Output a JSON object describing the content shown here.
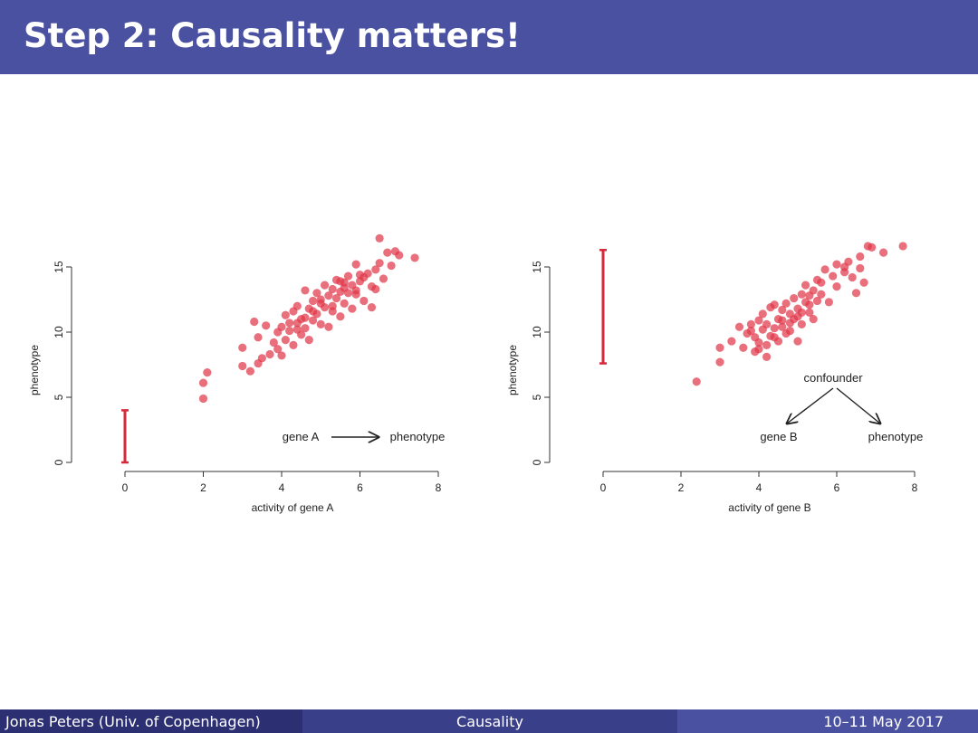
{
  "slide": {
    "title": "Step 2: Causality matters!"
  },
  "footer": {
    "left": "Jonas Peters  (Univ. of Copenhagen)",
    "center": "Causality",
    "right": "10–11 May 2017"
  },
  "colors": {
    "accent": "#4a51a0",
    "points": "#e0384a",
    "bar": "#d42a3c"
  },
  "chart_data": [
    {
      "type": "scatter",
      "xlabel": "activity of gene A",
      "ylabel": "phenotype",
      "xlim": [
        -1.4,
        8.8
      ],
      "ylim": [
        -0.6,
        19.5
      ],
      "x_ticks": [
        0,
        2,
        4,
        6,
        8
      ],
      "y_ticks": [
        0,
        5,
        10,
        15
      ],
      "interval": {
        "x": 0,
        "y_low": 0,
        "y_high": 4
      },
      "annotation": {
        "from": "gene A",
        "to": "phenotype"
      },
      "points": [
        [
          2.0,
          4.9
        ],
        [
          2.0,
          6.1
        ],
        [
          2.1,
          6.9
        ],
        [
          3.0,
          7.4
        ],
        [
          3.0,
          8.8
        ],
        [
          3.2,
          7.0
        ],
        [
          3.3,
          10.8
        ],
        [
          3.4,
          7.6
        ],
        [
          3.4,
          9.6
        ],
        [
          3.5,
          8.0
        ],
        [
          3.6,
          10.5
        ],
        [
          3.7,
          8.3
        ],
        [
          3.8,
          9.2
        ],
        [
          3.9,
          8.7
        ],
        [
          3.9,
          10.0
        ],
        [
          4.0,
          8.2
        ],
        [
          4.0,
          10.4
        ],
        [
          4.1,
          9.4
        ],
        [
          4.1,
          11.3
        ],
        [
          4.2,
          10.1
        ],
        [
          4.3,
          11.6
        ],
        [
          4.3,
          9.0
        ],
        [
          4.4,
          10.7
        ],
        [
          4.4,
          12.0
        ],
        [
          4.5,
          9.8
        ],
        [
          4.5,
          11.0
        ],
        [
          4.6,
          13.2
        ],
        [
          4.6,
          10.3
        ],
        [
          4.7,
          11.8
        ],
        [
          4.7,
          9.4
        ],
        [
          4.8,
          12.4
        ],
        [
          4.8,
          10.9
        ],
        [
          4.9,
          13.0
        ],
        [
          4.9,
          11.4
        ],
        [
          5.0,
          12.2
        ],
        [
          5.0,
          10.6
        ],
        [
          5.1,
          13.6
        ],
        [
          5.1,
          11.9
        ],
        [
          5.2,
          12.8
        ],
        [
          5.2,
          10.4
        ],
        [
          5.3,
          13.3
        ],
        [
          5.3,
          11.6
        ],
        [
          5.4,
          14.0
        ],
        [
          5.4,
          12.6
        ],
        [
          5.5,
          13.1
        ],
        [
          5.5,
          11.2
        ],
        [
          5.6,
          13.8
        ],
        [
          5.6,
          12.2
        ],
        [
          5.7,
          14.3
        ],
        [
          5.7,
          13.0
        ],
        [
          5.8,
          13.6
        ],
        [
          5.8,
          11.8
        ],
        [
          5.9,
          15.2
        ],
        [
          5.9,
          12.9
        ],
        [
          6.0,
          13.9
        ],
        [
          6.1,
          14.2
        ],
        [
          6.1,
          12.4
        ],
        [
          6.2,
          14.5
        ],
        [
          6.3,
          13.5
        ],
        [
          6.3,
          11.9
        ],
        [
          6.4,
          14.8
        ],
        [
          6.4,
          13.3
        ],
        [
          6.5,
          17.2
        ],
        [
          6.5,
          15.3
        ],
        [
          6.6,
          14.1
        ],
        [
          6.7,
          16.1
        ],
        [
          6.8,
          15.1
        ],
        [
          6.9,
          16.2
        ],
        [
          7.0,
          15.9
        ],
        [
          7.4,
          15.7
        ],
        [
          4.2,
          10.7
        ],
        [
          4.6,
          11.1
        ],
        [
          5.0,
          12.5
        ],
        [
          5.3,
          12.0
        ],
        [
          5.6,
          13.4
        ],
        [
          5.9,
          13.2
        ],
        [
          4.8,
          11.6
        ],
        [
          5.5,
          13.9
        ],
        [
          6.0,
          14.4
        ],
        [
          4.4,
          10.2
        ]
      ]
    },
    {
      "type": "scatter",
      "xlabel": "activity of gene B",
      "ylabel": "phenotype",
      "xlim": [
        -1.4,
        8.8
      ],
      "ylim": [
        -0.6,
        19.5
      ],
      "x_ticks": [
        0,
        2,
        4,
        6,
        8
      ],
      "y_ticks": [
        0,
        5,
        10,
        15
      ],
      "interval": {
        "x": 0,
        "y_low": 7.6,
        "y_high": 16.3
      },
      "annotation": {
        "top": "confounder",
        "left": "gene B",
        "right": "phenotype"
      },
      "points": [
        [
          2.4,
          6.2
        ],
        [
          3.0,
          7.7
        ],
        [
          3.0,
          8.8
        ],
        [
          3.3,
          9.3
        ],
        [
          3.5,
          10.4
        ],
        [
          3.6,
          8.8
        ],
        [
          3.7,
          9.9
        ],
        [
          3.8,
          10.6
        ],
        [
          3.9,
          9.6
        ],
        [
          3.9,
          8.5
        ],
        [
          4.0,
          10.9
        ],
        [
          4.0,
          9.2
        ],
        [
          4.1,
          10.2
        ],
        [
          4.1,
          11.4
        ],
        [
          4.2,
          8.1
        ],
        [
          4.2,
          10.6
        ],
        [
          4.3,
          11.9
        ],
        [
          4.3,
          9.7
        ],
        [
          4.4,
          10.3
        ],
        [
          4.4,
          12.1
        ],
        [
          4.5,
          11.0
        ],
        [
          4.5,
          9.3
        ],
        [
          4.6,
          11.7
        ],
        [
          4.6,
          10.4
        ],
        [
          4.7,
          12.2
        ],
        [
          4.7,
          9.9
        ],
        [
          4.8,
          11.4
        ],
        [
          4.8,
          10.7
        ],
        [
          4.9,
          12.6
        ],
        [
          4.9,
          11.0
        ],
        [
          5.0,
          11.8
        ],
        [
          5.0,
          9.3
        ],
        [
          5.1,
          12.9
        ],
        [
          5.1,
          10.6
        ],
        [
          5.2,
          12.3
        ],
        [
          5.2,
          13.6
        ],
        [
          5.3,
          11.5
        ],
        [
          5.3,
          12.8
        ],
        [
          5.4,
          13.2
        ],
        [
          5.4,
          11.0
        ],
        [
          5.5,
          14.0
        ],
        [
          5.5,
          12.4
        ],
        [
          5.6,
          13.8
        ],
        [
          5.7,
          14.8
        ],
        [
          5.8,
          12.3
        ],
        [
          5.9,
          14.3
        ],
        [
          6.0,
          13.5
        ],
        [
          6.0,
          15.2
        ],
        [
          6.2,
          14.6
        ],
        [
          6.3,
          15.4
        ],
        [
          6.4,
          14.2
        ],
        [
          6.5,
          13.0
        ],
        [
          6.6,
          14.9
        ],
        [
          6.7,
          13.8
        ],
        [
          6.8,
          16.6
        ],
        [
          6.9,
          16.5
        ],
        [
          7.2,
          16.1
        ],
        [
          7.7,
          16.6
        ],
        [
          6.2,
          15.0
        ],
        [
          6.6,
          15.8
        ],
        [
          3.8,
          10.1
        ],
        [
          4.0,
          8.7
        ],
        [
          4.4,
          9.6
        ],
        [
          4.8,
          10.1
        ],
        [
          5.0,
          11.2
        ],
        [
          5.3,
          12.1
        ],
        [
          4.6,
          10.9
        ],
        [
          4.2,
          9.0
        ],
        [
          5.1,
          11.5
        ],
        [
          5.6,
          12.9
        ]
      ]
    }
  ]
}
